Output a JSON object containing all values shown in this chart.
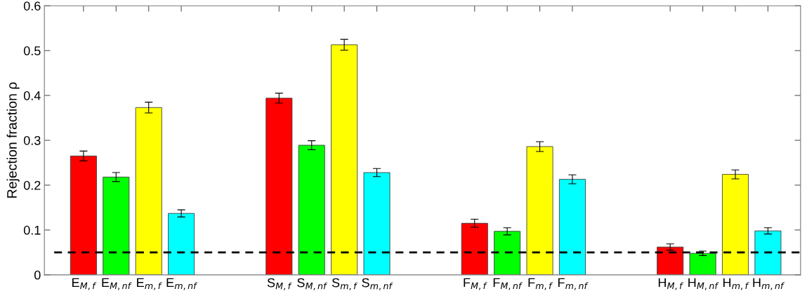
{
  "chart_data": {
    "type": "bar",
    "ylabel": "Rejection fraction ρ",
    "categories": [
      "E$_{M,f}$",
      "E$_{M,nf}$",
      "E$_{m,f}$",
      "E$_{m,nf}$",
      null,
      null,
      "S$_{M,f}$",
      "S$_{M,nf}$",
      "S$_{m,f}$",
      "S$_{m,nf}$",
      null,
      null,
      "F$_{M,f}$",
      "F$_{M,nf}$",
      "F$_{m,f}$",
      "F$_{m,nf}$",
      null,
      null,
      "H$_{M,f}$",
      "H$_{M,nf}$",
      "H$_{m,f}$",
      "H$_{m,nf}$"
    ],
    "values": [
      0.265,
      0.218,
      0.373,
      0.137,
      null,
      null,
      0.394,
      0.289,
      0.513,
      0.228,
      null,
      null,
      0.115,
      0.097,
      0.286,
      0.213,
      null,
      null,
      0.062,
      0.048,
      0.224,
      0.098
    ],
    "errors": [
      0.011,
      0.01,
      0.012,
      0.008,
      null,
      null,
      0.011,
      0.01,
      0.012,
      0.009,
      null,
      null,
      0.009,
      0.008,
      0.011,
      0.01,
      null,
      null,
      0.007,
      0.005,
      0.01,
      0.007
    ],
    "colors": [
      "#ff0000",
      "#00ff00",
      "#ffff00",
      "#00ffff",
      null,
      null,
      "#ff0000",
      "#00ff00",
      "#ffff00",
      "#00ffff",
      null,
      null,
      "#ff0000",
      "#00ff00",
      "#ffff00",
      "#00ffff",
      null,
      null,
      "#ff0000",
      "#00ff00",
      "#ffff00",
      "#00ffff"
    ],
    "ylim": [
      0,
      0.6
    ],
    "yticks": [
      0,
      0.1,
      0.2,
      0.3,
      0.4,
      0.5,
      0.6
    ],
    "ref_lines": [
      {
        "axis": "y",
        "value": 0.05,
        "color": "#000000",
        "line_style": "dashed"
      }
    ],
    "grid": false,
    "legend": false
  }
}
